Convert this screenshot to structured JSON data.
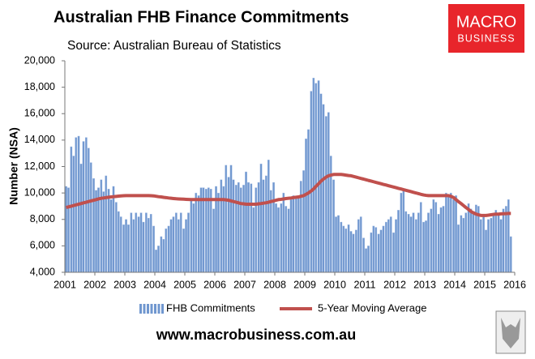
{
  "chart_data": {
    "type": "bar",
    "title": "Australian FHB Finance Commitments",
    "subtitle": "Source: Australian Bureau of Statistics",
    "y_label": "Number (NSA)",
    "xlim": [
      2001,
      2016
    ],
    "xticks": [
      2001,
      2002,
      2003,
      2004,
      2005,
      2006,
      2007,
      2008,
      2009,
      2010,
      2011,
      2012,
      2013,
      2014,
      2015,
      2016
    ],
    "ylim": [
      4000,
      20000
    ],
    "yticks": [
      {
        "value": 4000,
        "label": "4,000"
      },
      {
        "value": 6000,
        "label": "6,000"
      },
      {
        "value": 8000,
        "label": "8,000"
      },
      {
        "value": 10000,
        "label": "10,000"
      },
      {
        "value": 12000,
        "label": "12,000"
      },
      {
        "value": 14000,
        "label": "14,000"
      },
      {
        "value": 16000,
        "label": "16,000"
      },
      {
        "value": 18000,
        "label": "18,000"
      },
      {
        "value": 20000,
        "label": "20,000"
      }
    ],
    "grid": false,
    "legend": "bottom",
    "x": [
      2001,
      2001.08,
      2001.17,
      2001.25,
      2001.33,
      2001.42,
      2001.5,
      2001.58,
      2001.67,
      2001.75,
      2001.83,
      2001.92,
      2002,
      2002.08,
      2002.17,
      2002.25,
      2002.33,
      2002.42,
      2002.5,
      2002.58,
      2002.67,
      2002.75,
      2002.83,
      2002.92,
      2003,
      2003.08,
      2003.17,
      2003.25,
      2003.33,
      2003.42,
      2003.5,
      2003.58,
      2003.67,
      2003.75,
      2003.83,
      2003.92,
      2004,
      2004.08,
      2004.17,
      2004.25,
      2004.33,
      2004.42,
      2004.5,
      2004.58,
      2004.67,
      2004.75,
      2004.83,
      2004.92,
      2005,
      2005.08,
      2005.17,
      2005.25,
      2005.33,
      2005.42,
      2005.5,
      2005.58,
      2005.67,
      2005.75,
      2005.83,
      2005.92,
      2006,
      2006.08,
      2006.17,
      2006.25,
      2006.33,
      2006.42,
      2006.5,
      2006.58,
      2006.67,
      2006.75,
      2006.83,
      2006.92,
      2007,
      2007.08,
      2007.17,
      2007.25,
      2007.33,
      2007.42,
      2007.5,
      2007.58,
      2007.67,
      2007.75,
      2007.83,
      2007.92,
      2008,
      2008.08,
      2008.17,
      2008.25,
      2008.33,
      2008.42,
      2008.5,
      2008.58,
      2008.67,
      2008.75,
      2008.83,
      2008.92,
      2009,
      2009.08,
      2009.17,
      2009.25,
      2009.33,
      2009.42,
      2009.5,
      2009.58,
      2009.67,
      2009.75,
      2009.83,
      2009.92,
      2010,
      2010.08,
      2010.17,
      2010.25,
      2010.33,
      2010.42,
      2010.5,
      2010.58,
      2010.67,
      2010.75,
      2010.83,
      2010.92,
      2011,
      2011.08,
      2011.17,
      2011.25,
      2011.33,
      2011.42,
      2011.5,
      2011.58,
      2011.67,
      2011.75,
      2011.83,
      2011.92,
      2012,
      2012.08,
      2012.17,
      2012.25,
      2012.33,
      2012.42,
      2012.5,
      2012.58,
      2012.67,
      2012.75,
      2012.83,
      2012.92,
      2013,
      2013.08,
      2013.17,
      2013.25,
      2013.33,
      2013.42,
      2013.5,
      2013.58,
      2013.67,
      2013.75,
      2013.83,
      2013.92,
      2014,
      2014.08,
      2014.17,
      2014.25,
      2014.33,
      2014.42,
      2014.5,
      2014.58,
      2014.67,
      2014.75,
      2014.83,
      2014.92,
      2015,
      2015.08,
      2015.17,
      2015.25,
      2015.33,
      2015.42,
      2015.5,
      2015.58,
      2015.67,
      2015.75,
      2015.83
    ],
    "series": [
      {
        "name": "FHB Commitments",
        "type": "bar",
        "color": "#7097cf",
        "values": [
          10500,
          10400,
          13500,
          12800,
          14200,
          14300,
          12200,
          13900,
          14200,
          13400,
          12300,
          11100,
          10200,
          10400,
          11000,
          10100,
          11300,
          10300,
          9500,
          10500,
          9300,
          8600,
          8200,
          7600,
          8000,
          7600,
          8500,
          8000,
          8500,
          8200,
          8500,
          7800,
          8500,
          8100,
          8400,
          7500,
          5700,
          6000,
          6700,
          6500,
          7300,
          7500,
          8000,
          8200,
          8500,
          8000,
          8500,
          7300,
          8000,
          8500,
          9500,
          9200,
          10000,
          9800,
          10400,
          10400,
          10300,
          10400,
          10300,
          8800,
          10500,
          10000,
          11000,
          10500,
          12100,
          11200,
          12100,
          11000,
          10600,
          10800,
          10400,
          10600,
          11600,
          10800,
          10700,
          8900,
          10400,
          10800,
          12200,
          11000,
          11300,
          12500,
          10200,
          10800,
          9200,
          8900,
          9200,
          10000,
          9000,
          8800,
          9500,
          9800,
          9700,
          9600,
          10900,
          11700,
          14100,
          14800,
          17700,
          18700,
          18300,
          18500,
          17500,
          16700,
          15800,
          16100,
          12800,
          11000,
          8200,
          8300,
          7800,
          7500,
          7300,
          7600,
          7100,
          6900,
          7200,
          8000,
          8200,
          6600,
          5800,
          6000,
          7000,
          7500,
          7400,
          6900,
          7200,
          7500,
          7800,
          8000,
          8200,
          7000,
          8000,
          8700,
          10000,
          10200,
          8600,
          8400,
          8200,
          8500,
          8000,
          8500,
          9300,
          7800,
          7900,
          8500,
          8800,
          9500,
          9300,
          8400,
          8900,
          9000,
          10000,
          9700,
          10000,
          9500,
          9800,
          7600,
          8300,
          8100,
          8500,
          9200,
          8800,
          8400,
          9100,
          9000,
          8000,
          8300,
          7200,
          8000,
          8100,
          8300,
          8700,
          8400,
          8000,
          8800,
          9000,
          9500,
          6700
        ]
      },
      {
        "name": "5-Year Moving Average",
        "type": "line",
        "color": "#c0504d",
        "values": [
          8900,
          8950,
          9000,
          9050,
          9100,
          9150,
          9200,
          9250,
          9300,
          9350,
          9400,
          9450,
          9500,
          9550,
          9600,
          9620,
          9650,
          9680,
          9700,
          9720,
          9740,
          9760,
          9780,
          9790,
          9800,
          9800,
          9800,
          9800,
          9800,
          9800,
          9800,
          9800,
          9800,
          9800,
          9790,
          9780,
          9750,
          9720,
          9700,
          9670,
          9650,
          9620,
          9600,
          9580,
          9560,
          9550,
          9540,
          9530,
          9520,
          9510,
          9500,
          9500,
          9500,
          9500,
          9500,
          9500,
          9500,
          9500,
          9500,
          9500,
          9500,
          9500,
          9500,
          9500,
          9480,
          9450,
          9400,
          9350,
          9300,
          9250,
          9200,
          9180,
          9150,
          9150,
          9150,
          9150,
          9150,
          9180,
          9200,
          9230,
          9260,
          9300,
          9350,
          9400,
          9450,
          9500,
          9520,
          9550,
          9580,
          9600,
          9620,
          9650,
          9680,
          9700,
          9750,
          9800,
          9900,
          10000,
          10150,
          10300,
          10500,
          10700,
          10900,
          11050,
          11200,
          11300,
          11350,
          11400,
          11400,
          11400,
          11400,
          11380,
          11350,
          11320,
          11300,
          11250,
          11200,
          11150,
          11100,
          11050,
          11000,
          10950,
          10900,
          10850,
          10800,
          10750,
          10700,
          10650,
          10600,
          10550,
          10500,
          10450,
          10400,
          10350,
          10300,
          10250,
          10200,
          10150,
          10100,
          10050,
          10000,
          9950,
          9900,
          9850,
          9820,
          9800,
          9800,
          9800,
          9800,
          9800,
          9800,
          9800,
          9800,
          9800,
          9750,
          9650,
          9500,
          9350,
          9200,
          9050,
          8900,
          8750,
          8600,
          8500,
          8400,
          8350,
          8300,
          8300,
          8300,
          8320,
          8350,
          8380,
          8400,
          8400,
          8420,
          8430,
          8440,
          8450,
          8450
        ]
      }
    ]
  },
  "logo": {
    "top": "MACRO",
    "bottom": "BUSINESS"
  },
  "footer": "www.macrobusiness.com.au"
}
